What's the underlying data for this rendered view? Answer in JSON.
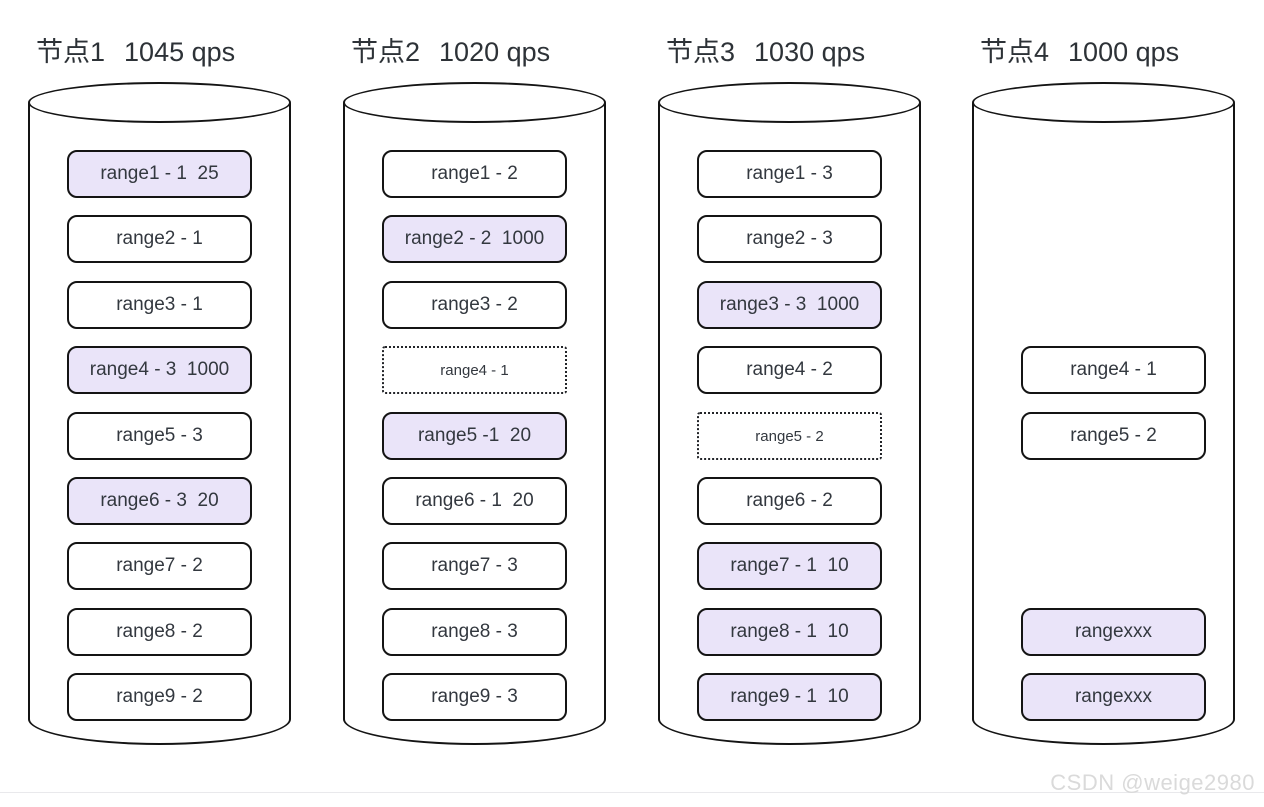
{
  "diagram": {
    "title_suffix": "qps",
    "colors": {
      "highlight": "#eae4f9",
      "box_border": "#141414",
      "text": "#33383f"
    },
    "nodes": [
      {
        "name": "节点1",
        "qps": "1045 qps",
        "items": [
          {
            "label": "range1 - 1  25",
            "row": 1,
            "style": "highlight"
          },
          {
            "label": "range2 - 1",
            "row": 2,
            "style": "normal"
          },
          {
            "label": "range3 - 1",
            "row": 3,
            "style": "normal"
          },
          {
            "label": "range4 - 3  1000",
            "row": 4,
            "style": "highlight"
          },
          {
            "label": "range5 - 3",
            "row": 5,
            "style": "normal"
          },
          {
            "label": "range6 - 3  20",
            "row": 6,
            "style": "highlight"
          },
          {
            "label": "range7 - 2",
            "row": 7,
            "style": "normal"
          },
          {
            "label": "range8 - 2",
            "row": 8,
            "style": "normal"
          },
          {
            "label": "range9 - 2",
            "row": 9,
            "style": "normal"
          }
        ]
      },
      {
        "name": "节点2",
        "qps": "1020 qps",
        "items": [
          {
            "label": "range1 - 2",
            "row": 1,
            "style": "normal"
          },
          {
            "label": "range2 - 2  1000",
            "row": 2,
            "style": "highlight"
          },
          {
            "label": "range3 - 2",
            "row": 3,
            "style": "normal"
          },
          {
            "label": "range4 - 1",
            "row": 4,
            "style": "dotted"
          },
          {
            "label": "range5 -1  20",
            "row": 5,
            "style": "highlight"
          },
          {
            "label": "range6 - 1  20",
            "row": 6,
            "style": "normal"
          },
          {
            "label": "range7 - 3",
            "row": 7,
            "style": "normal"
          },
          {
            "label": "range8 - 3",
            "row": 8,
            "style": "normal"
          },
          {
            "label": "range9 - 3",
            "row": 9,
            "style": "normal"
          }
        ]
      },
      {
        "name": "节点3",
        "qps": "1030 qps",
        "items": [
          {
            "label": "range1 - 3",
            "row": 1,
            "style": "normal"
          },
          {
            "label": "range2 - 3",
            "row": 2,
            "style": "normal"
          },
          {
            "label": "range3 - 3  1000",
            "row": 3,
            "style": "highlight"
          },
          {
            "label": "range4 - 2",
            "row": 4,
            "style": "normal"
          },
          {
            "label": "range5 - 2",
            "row": 5,
            "style": "dotted"
          },
          {
            "label": "range6 - 2",
            "row": 6,
            "style": "normal"
          },
          {
            "label": "range7 - 1  10",
            "row": 7,
            "style": "highlight"
          },
          {
            "label": "range8 - 1  10",
            "row": 8,
            "style": "highlight"
          },
          {
            "label": "range9 - 1  10",
            "row": 9,
            "style": "highlight"
          }
        ]
      },
      {
        "name": "节点4",
        "qps": "1000 qps",
        "items": [
          {
            "label": "range4 - 1",
            "row": 4,
            "style": "normal"
          },
          {
            "label": "range5 - 2",
            "row": 5,
            "style": "normal"
          },
          {
            "label": "rangexxx",
            "row": 8,
            "style": "highlight"
          },
          {
            "label": "rangexxx",
            "row": 9,
            "style": "highlight"
          }
        ]
      }
    ],
    "watermark": "CSDN @weige2980"
  }
}
